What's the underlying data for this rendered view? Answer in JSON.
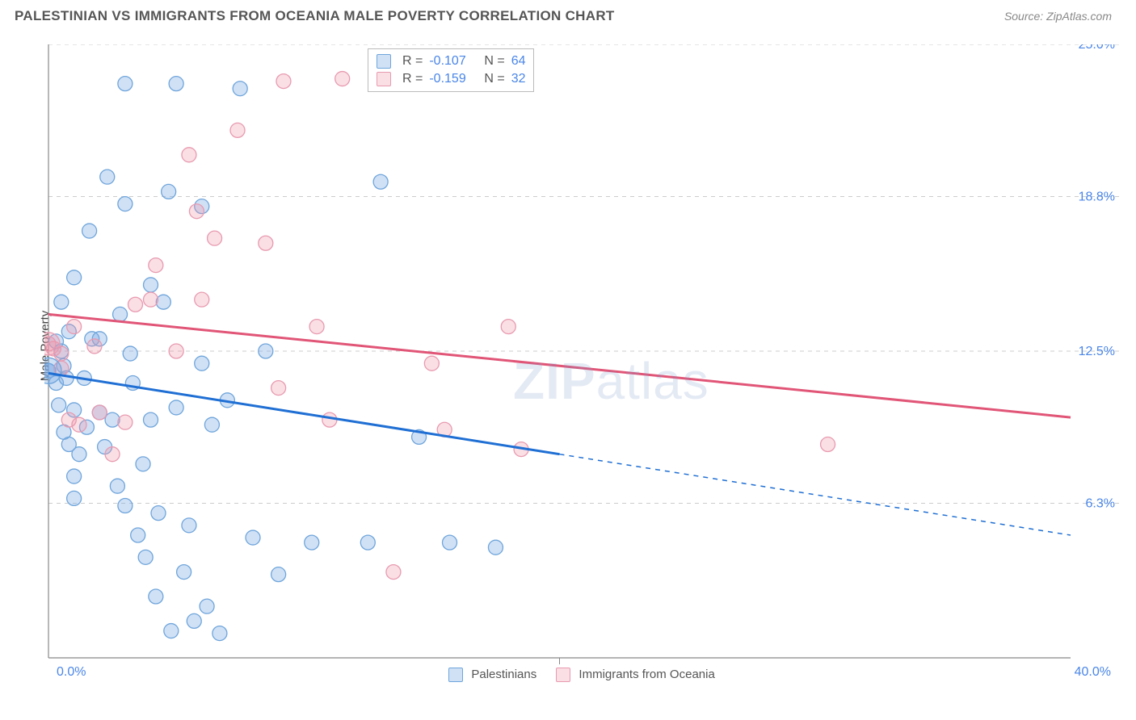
{
  "header": {
    "title": "PALESTINIAN VS IMMIGRANTS FROM OCEANIA MALE POVERTY CORRELATION CHART",
    "source": "Source: ZipAtlas.com"
  },
  "y_axis_label": "Male Poverty",
  "watermark_a": "ZIP",
  "watermark_b": "atlas",
  "chart": {
    "type": "scatter-with-trend",
    "background_color": "#ffffff",
    "grid_color": "#cccccc",
    "axis_color": "#888888",
    "tick_label_color": "#4a86e8",
    "xlim": [
      0,
      40
    ],
    "ylim": [
      0,
      25
    ],
    "x_ticks": [
      0,
      40
    ],
    "x_tick_labels": [
      "0.0%",
      "40.0%"
    ],
    "y_ticks": [
      6.3,
      12.5,
      18.8,
      25.0
    ],
    "y_tick_labels": [
      "6.3%",
      "12.5%",
      "18.8%",
      "25.0%"
    ],
    "x_axis_minor": [
      20
    ],
    "marker_radius": 9,
    "marker_stroke_width": 1.3,
    "series": [
      {
        "name": "Palestinians",
        "fill": "rgba(120,170,230,0.35)",
        "stroke": "#6fa5db",
        "R": "-0.107",
        "N": "64",
        "trend": {
          "color": "#1f6fd4",
          "width": 3,
          "x0": 0,
          "y0": 11.6,
          "x_solid_end": 20,
          "y_solid_end": 8.3,
          "x1": 40,
          "y1": 5.0
        },
        "points": [
          [
            0,
            11.7
          ],
          [
            0,
            11.7
          ],
          [
            0.3,
            12.9
          ],
          [
            0.3,
            11.2
          ],
          [
            0.4,
            10.3
          ],
          [
            0.5,
            12.5
          ],
          [
            0.5,
            14.5
          ],
          [
            0.6,
            9.2
          ],
          [
            0.6,
            11.9
          ],
          [
            0.7,
            11.4
          ],
          [
            0.8,
            8.7
          ],
          [
            0.8,
            13.3
          ],
          [
            1.0,
            10.1
          ],
          [
            1.0,
            6.5
          ],
          [
            1.0,
            15.5
          ],
          [
            1.0,
            7.4
          ],
          [
            1.2,
            8.3
          ],
          [
            1.4,
            11.4
          ],
          [
            1.5,
            9.4
          ],
          [
            1.6,
            17.4
          ],
          [
            1.7,
            13.0
          ],
          [
            2.0,
            10.0
          ],
          [
            2.0,
            13.0
          ],
          [
            2.2,
            8.6
          ],
          [
            2.3,
            19.6
          ],
          [
            2.5,
            9.7
          ],
          [
            2.7,
            7.0
          ],
          [
            2.8,
            14.0
          ],
          [
            3.0,
            23.4
          ],
          [
            3.0,
            6.2
          ],
          [
            3.0,
            18.5
          ],
          [
            3.2,
            12.4
          ],
          [
            3.3,
            11.2
          ],
          [
            3.5,
            5.0
          ],
          [
            3.7,
            7.9
          ],
          [
            3.8,
            4.1
          ],
          [
            4.0,
            15.2
          ],
          [
            4.0,
            9.7
          ],
          [
            4.2,
            2.5
          ],
          [
            4.3,
            5.9
          ],
          [
            4.5,
            14.5
          ],
          [
            4.7,
            19.0
          ],
          [
            4.8,
            1.1
          ],
          [
            5.0,
            10.2
          ],
          [
            5.0,
            23.4
          ],
          [
            5.3,
            3.5
          ],
          [
            5.5,
            5.4
          ],
          [
            5.7,
            1.5
          ],
          [
            6.0,
            12.0
          ],
          [
            6.0,
            18.4
          ],
          [
            6.2,
            2.1
          ],
          [
            6.4,
            9.5
          ],
          [
            6.7,
            1.0
          ],
          [
            7.0,
            10.5
          ],
          [
            7.5,
            23.2
          ],
          [
            8.0,
            4.9
          ],
          [
            8.5,
            12.5
          ],
          [
            9.0,
            3.4
          ],
          [
            10.3,
            4.7
          ],
          [
            12.5,
            4.7
          ],
          [
            13.0,
            19.4
          ],
          [
            14.5,
            9.0
          ],
          [
            15.7,
            4.7
          ],
          [
            17.5,
            4.5
          ]
        ]
      },
      {
        "name": "Immigrants from Oceania",
        "fill": "rgba(240,150,170,0.30)",
        "stroke": "#e89ab0",
        "R": "-0.159",
        "N": "32",
        "trend": {
          "color": "#e15577",
          "width": 3,
          "x0": 0,
          "y0": 14.0,
          "x_solid_end": 40,
          "y_solid_end": 9.8,
          "x1": 40,
          "y1": 9.8
        },
        "points": [
          [
            0,
            12.8
          ],
          [
            0.2,
            12.6
          ],
          [
            0.5,
            11.8
          ],
          [
            0.5,
            12.4
          ],
          [
            0.8,
            9.7
          ],
          [
            1.0,
            13.5
          ],
          [
            1.2,
            9.5
          ],
          [
            1.8,
            12.7
          ],
          [
            2.0,
            10.0
          ],
          [
            2.5,
            8.3
          ],
          [
            3.0,
            9.6
          ],
          [
            3.4,
            14.4
          ],
          [
            4.0,
            14.6
          ],
          [
            4.2,
            16.0
          ],
          [
            5.0,
            12.5
          ],
          [
            5.5,
            20.5
          ],
          [
            5.8,
            18.2
          ],
          [
            6.0,
            14.6
          ],
          [
            6.5,
            17.1
          ],
          [
            7.4,
            21.5
          ],
          [
            8.5,
            16.9
          ],
          [
            9.0,
            11.0
          ],
          [
            9.2,
            23.5
          ],
          [
            10.5,
            13.5
          ],
          [
            11.0,
            9.7
          ],
          [
            11.5,
            23.6
          ],
          [
            13.5,
            3.5
          ],
          [
            15.0,
            12.0
          ],
          [
            15.5,
            9.3
          ],
          [
            18.0,
            13.5
          ],
          [
            18.5,
            8.5
          ],
          [
            30.5,
            8.7
          ]
        ]
      }
    ],
    "big_markers": [
      {
        "series": 0,
        "x": 0,
        "y": 11.7,
        "r": 16
      },
      {
        "series": 1,
        "x": 0,
        "y": 12.8,
        "r": 14
      }
    ]
  },
  "top_legend": {
    "r_prefix": "R =",
    "n_prefix": "N ="
  },
  "footer": {
    "items": [
      "Palestinians",
      "Immigrants from Oceania"
    ]
  }
}
